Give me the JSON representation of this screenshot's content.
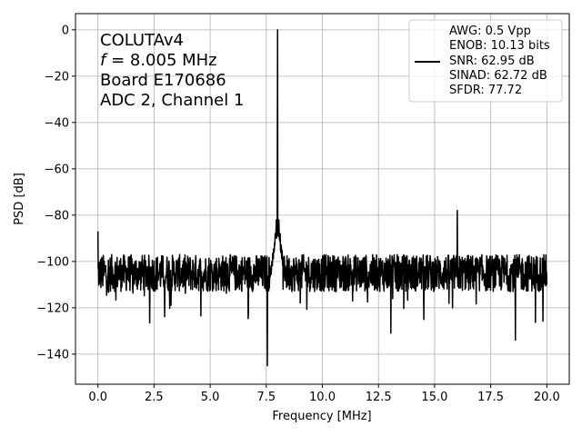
{
  "chart_data": {
    "type": "line",
    "title": "",
    "xlabel": "Frequency [MHz]",
    "ylabel": "PSD [dB]",
    "xlim": [
      -1.0,
      21.0
    ],
    "ylim": [
      -153,
      7
    ],
    "x_ticks": [
      0.0,
      2.5,
      5.0,
      7.5,
      10.0,
      12.5,
      15.0,
      17.5,
      20.0
    ],
    "x_tick_labels": [
      "0.0",
      "2.5",
      "5.0",
      "7.5",
      "10.0",
      "12.5",
      "15.0",
      "17.5",
      "20.0"
    ],
    "y_ticks": [
      0,
      -20,
      -40,
      -60,
      -80,
      -100,
      -120,
      -140
    ],
    "y_tick_labels": [
      "0",
      "−20",
      "−40",
      "−60",
      "−80",
      "−100",
      "−120",
      "−140"
    ],
    "grid": true,
    "line_color": "#000000",
    "annotation": {
      "lines": [
        "COLUTAv4",
        "f = 8.005 MHz",
        "Board E170686",
        "ADC 2, Channel 1"
      ]
    },
    "legend": {
      "placement": "top-right",
      "entries": [
        "AWG: 0.5 Vpp",
        "ENOB: 10.13 bits",
        "SNR: 62.95 dB",
        "SINAD: 62.72 dB",
        "SFDR: 77.72"
      ]
    },
    "series": [
      {
        "noise_floor_db": -105,
        "noise_spread_db": 8,
        "x_range": [
          0.0,
          20.0
        ],
        "features": [
          {
            "x": 0.0,
            "y": -87
          },
          {
            "x": 7.55,
            "y": -145
          },
          {
            "x": 7.75,
            "y": -100
          },
          {
            "x": 7.9,
            "y": -88
          },
          {
            "x": 7.95,
            "y": -82
          },
          {
            "x": 8.005,
            "y": 0
          },
          {
            "x": 8.06,
            "y": -82
          },
          {
            "x": 8.12,
            "y": -88
          },
          {
            "x": 8.25,
            "y": -112
          },
          {
            "x": 16.01,
            "y": -78
          },
          {
            "x": 13.05,
            "y": -131
          },
          {
            "x": 18.6,
            "y": -134
          }
        ]
      }
    ]
  }
}
